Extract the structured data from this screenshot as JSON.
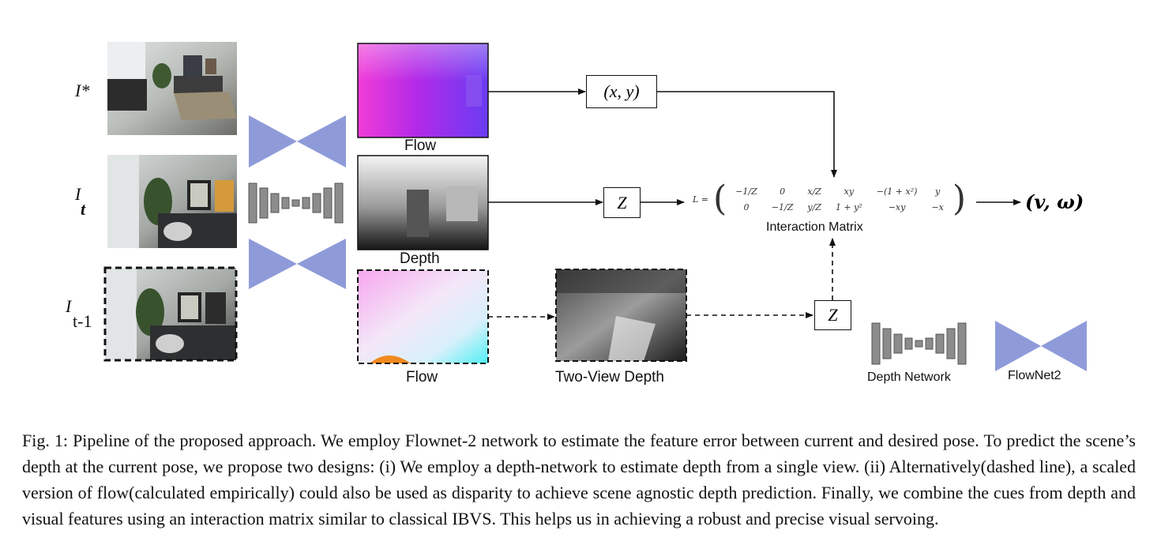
{
  "labels": {
    "i_star": "I*",
    "i_t_base": "I",
    "i_t_sub": "t",
    "i_t1_base": "I",
    "i_t1_sub": "t-1",
    "flow_top": "Flow",
    "depth": "Depth",
    "flow_bottom": "Flow",
    "two_view_depth": "Two-View Depth",
    "xy_box": "(x, y)",
    "z_box_top": "Z",
    "z_box_bottom": "Z",
    "interaction_matrix": "Interaction Matrix",
    "result": "(v, ω)",
    "legend_depth_network": "Depth Network",
    "legend_flownet2": "FlowNet2"
  },
  "matrix": {
    "lhs": "L =",
    "row1": [
      "−1/Z",
      "0",
      "x/Z",
      "xy",
      "−(1 + x²)",
      "y"
    ],
    "row2": [
      "0",
      "−1/Z",
      "y/Z",
      "1 + y²",
      "−xy",
      "−x"
    ]
  },
  "caption": "Fig. 1: Pipeline of the proposed approach. We employ Flownet-2 network to estimate the feature error between current and desired pose. To predict the scene’s depth at the current pose, we propose two designs: (i) We employ a depth-network to estimate depth from a single view. (ii) Alternatively(dashed line), a scaled version of flow(calculated empirically) could also be used as disparity to achieve scene agnostic depth prediction. Finally, we combine the cues from depth and visual features using an interaction matrix similar to classical IBVS. This helps us in achieving a robust and precise visual servoing.",
  "colors": {
    "flownet_blue": "#8f9bd9",
    "depthnet_gray": "#8c8c8c",
    "line": "#111111"
  }
}
